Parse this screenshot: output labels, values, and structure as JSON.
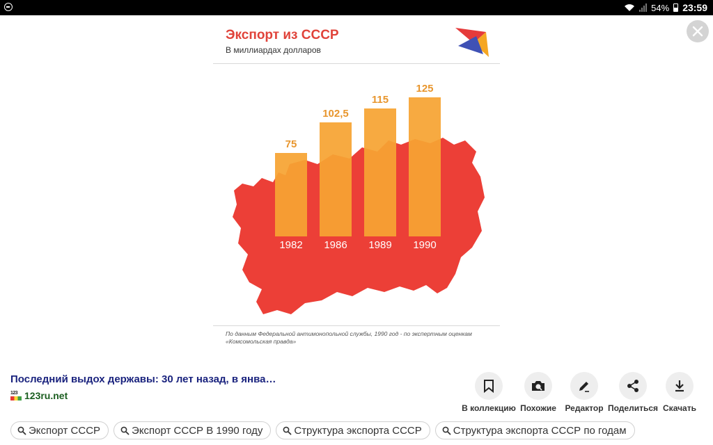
{
  "status_bar": {
    "battery": "54%",
    "time": "23:59"
  },
  "chart_data": {
    "type": "bar",
    "title": "Экспорт из СССР",
    "subtitle": "В миллиардах долларов",
    "categories": [
      "1982",
      "1986",
      "1989",
      "1990"
    ],
    "values": [
      75,
      102.5,
      115,
      125
    ],
    "value_labels": [
      "75",
      "102,5",
      "115",
      "125"
    ],
    "ylim": [
      0,
      135
    ],
    "grid": false,
    "legend": "none",
    "footnote": "По данным Федеральной антимонопольной службы, 1990 год - по экспертным оценкам «Комсомольская правда»",
    "colors": {
      "bar": "#f6a433",
      "title": "#e0433a",
      "value_label": "#e8962e",
      "map": "#ec3f37"
    }
  },
  "result": {
    "title": "Последний выдох державы: 30 лет назад, в янва…",
    "source_icon_text": "123",
    "source": "123ru.net"
  },
  "actions": [
    {
      "icon": "bookmark-icon",
      "label": "В коллекцию"
    },
    {
      "icon": "camera-search-icon",
      "label": "Похожие"
    },
    {
      "icon": "pencil-icon",
      "label": "Редактор"
    },
    {
      "icon": "share-icon",
      "label": "Поделиться"
    },
    {
      "icon": "download-icon",
      "label": "Скачать"
    }
  ],
  "chips": [
    "Экспорт СССР",
    "Экспорт СССР В 1990 году",
    "Структура экспорта СССР",
    "Структура экспорта СССР по годам"
  ]
}
